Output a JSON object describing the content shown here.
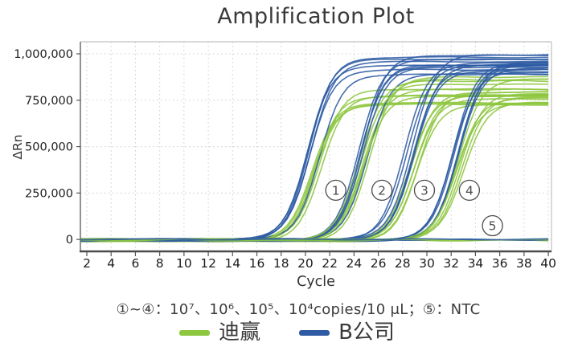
{
  "title": "Amplification Plot",
  "caption": "①~④：10⁷、10⁶、10⁵、10⁴copies/10 μL；⑤：NTC",
  "legend": [
    {
      "label": "迪赢",
      "color": "#8dc63f"
    },
    {
      "label": "B公司",
      "color": "#2e5ba4"
    }
  ],
  "chart_data": {
    "type": "line",
    "title": "Amplification Plot",
    "xlabel": "Cycle",
    "ylabel": "ΔRn",
    "xlim": [
      1.47,
      40.26
    ],
    "ylim": [
      -60000,
      1065000
    ],
    "x_ticks": [
      2,
      4,
      6,
      8,
      10,
      12,
      14,
      16,
      18,
      20,
      22,
      24,
      26,
      28,
      30,
      32,
      34,
      36,
      38,
      40
    ],
    "y_ticks": [
      0,
      250000,
      500000,
      750000,
      1000000
    ],
    "y_tick_labels": [
      "0",
      "250,000",
      "500,000",
      "750,000",
      "1,000,000"
    ],
    "grid": true,
    "legend_position": "bottom",
    "series": [
      {
        "name": "迪赢",
        "color": "#8dc63f"
      },
      {
        "name": "B公司",
        "color": "#2e5ba4"
      }
    ],
    "sigmoid_steepness": 1.05,
    "replicates_per_series": 6,
    "groups": [
      {
        "annotation": "①",
        "digit": "1",
        "concentration": "10⁷ copies/10 μL",
        "midpoint_cycle": 21.0,
        "ct_approx": 18,
        "plateau_green": [
          730000,
          905000
        ],
        "plateau_blue": [
          875000,
          1005000
        ],
        "label_at": [
          22.5,
          265000
        ]
      },
      {
        "annotation": "②",
        "digit": "2",
        "concentration": "10⁶ copies/10 μL",
        "midpoint_cycle": 24.9,
        "ct_approx": 22,
        "plateau_green": [
          730000,
          900000
        ],
        "plateau_blue": [
          870000,
          1000000
        ],
        "label_at": [
          26.3,
          265000
        ]
      },
      {
        "annotation": "③",
        "digit": "3",
        "concentration": "10⁵ copies/10 μL",
        "midpoint_cycle": 28.8,
        "ct_approx": 26,
        "plateau_green": [
          725000,
          895000
        ],
        "plateau_blue": [
          865000,
          995000
        ],
        "label_at": [
          29.8,
          265000
        ]
      },
      {
        "annotation": "④",
        "digit": "4",
        "concentration": "10⁴ copies/10 μL",
        "midpoint_cycle": 32.9,
        "ct_approx": 30,
        "plateau_green": [
          720000,
          880000
        ],
        "plateau_blue": [
          855000,
          985000
        ],
        "label_at": [
          33.5,
          265000
        ]
      }
    ],
    "ntc": {
      "annotation": "⑤",
      "digit": "5",
      "label": "NTC",
      "value": 0,
      "replicates_per_series": 2,
      "label_at": [
        35.4,
        74000
      ]
    }
  }
}
